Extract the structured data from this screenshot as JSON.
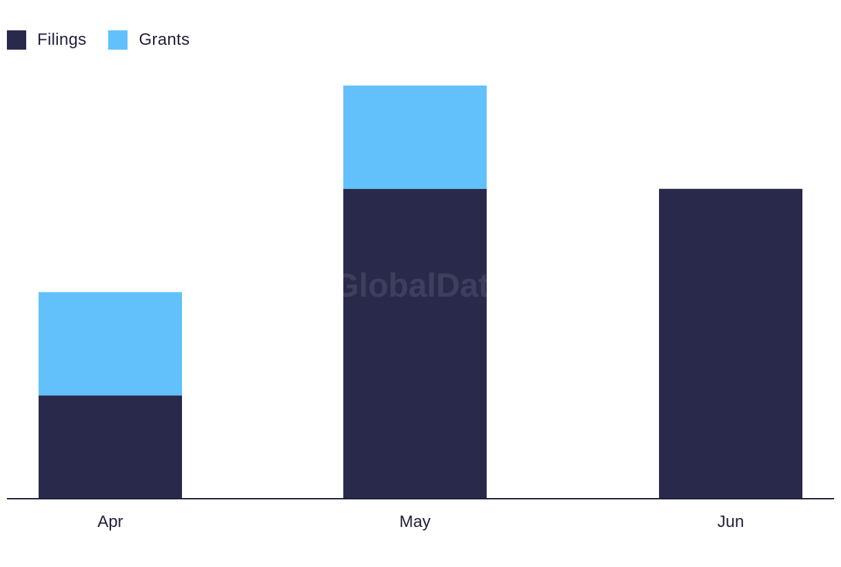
{
  "chart_data": {
    "type": "bar",
    "stacked": true,
    "categories": [
      "Apr",
      "May",
      "Jun"
    ],
    "series": [
      {
        "name": "Filings",
        "values": [
          1,
          3,
          3
        ],
        "color": "#29294b"
      },
      {
        "name": "Grants",
        "values": [
          1,
          1,
          0
        ],
        "color": "#62c1fa"
      }
    ],
    "title": "",
    "xlabel": "",
    "ylabel": "",
    "ylim": [
      0,
      4
    ],
    "grid": false,
    "legend": "top-left"
  },
  "watermark": "GlobalData"
}
